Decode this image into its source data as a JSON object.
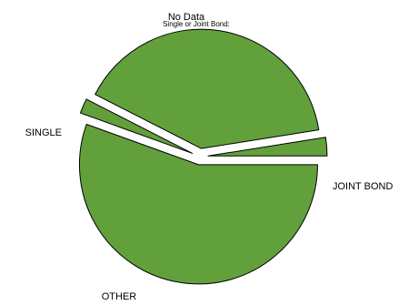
{
  "chart_data": {
    "type": "pie",
    "title": "Single or Joint Bond:",
    "slice_color": "#62a03c",
    "outline_color": "#000000",
    "exploded": true,
    "slices": [
      {
        "label": "JOINT BOND",
        "value": 55.5
      },
      {
        "label": "OTHER",
        "value": 2.0
      },
      {
        "label": "SINGLE",
        "value": 40.0
      },
      {
        "label": "No Data",
        "value": 2.5
      }
    ]
  }
}
